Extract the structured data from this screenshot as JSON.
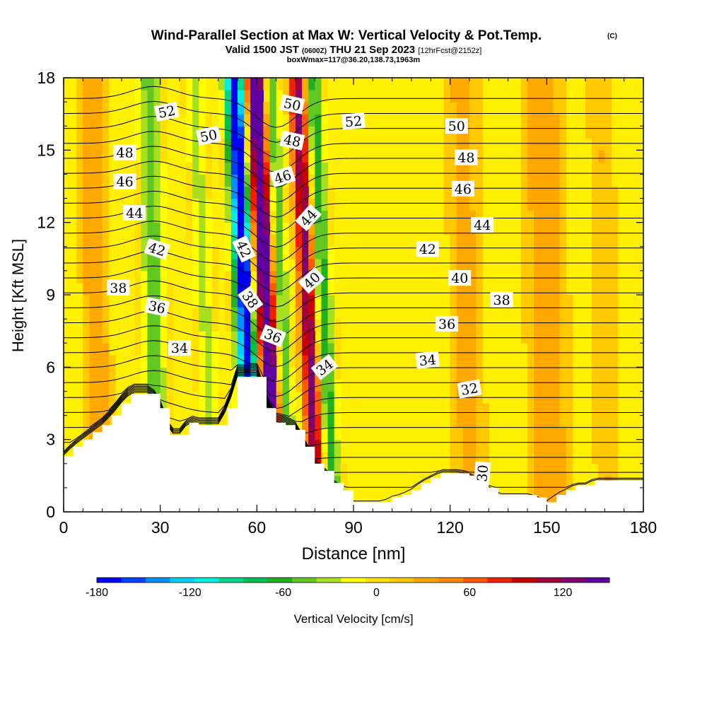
{
  "chart_data": {
    "type": "heatmap",
    "title": "Wind-Parallel Section at Max W: Vertical Velocity & Pot.Temp.",
    "title_mark": "(C)",
    "subtitle_parts": [
      "Valid 1500 JST",
      "(0600Z)",
      "THU 21 Sep 2023",
      "[12hrFcst@2152z]"
    ],
    "subtitle2": "boxWmax=117@36.20,138.73,1963m",
    "xlabel": "Distance [nm]",
    "ylabel": "Height [Kft MSL]",
    "xlim": [
      0,
      180
    ],
    "ylim": [
      0,
      18
    ],
    "xticks": [
      "0",
      "30",
      "60",
      "90",
      "120",
      "150",
      "180"
    ],
    "yticks": [
      "0",
      "3",
      "6",
      "9",
      "12",
      "15",
      "18"
    ],
    "colorbar": {
      "label": "Vertical Velocity [cm/s]",
      "range": [
        -180,
        150
      ],
      "step": 15,
      "tick_labels": [
        "-180",
        "-120",
        "-60",
        "0",
        "60",
        "120"
      ],
      "colors": [
        "#0000f5",
        "#0040ff",
        "#0090ff",
        "#00d0ff",
        "#00f0e0",
        "#00d890",
        "#00c050",
        "#20b020",
        "#60c820",
        "#a8e020",
        "#ffff00",
        "#ffe000",
        "#ffc800",
        "#ffa800",
        "#ff8800",
        "#ff5a00",
        "#f02000",
        "#c80000",
        "#a00040",
        "#800070",
        "#6000a0"
      ]
    },
    "w_features": [
      {
        "x": 28,
        "w": -55,
        "width": 3.5
      },
      {
        "x": 44,
        "w": -35,
        "width": 3
      },
      {
        "x": 55,
        "w": -90,
        "width": 2.5
      },
      {
        "x": 57,
        "w": -150,
        "width": 2
      },
      {
        "x": 63,
        "w": 160,
        "width": 2.5
      },
      {
        "x": 68,
        "w": -60,
        "width": 2
      },
      {
        "x": 76,
        "w": 110,
        "width": 2.5
      },
      {
        "x": 81,
        "w": -70,
        "width": 2.5
      },
      {
        "x": 10,
        "w": 25,
        "width": 4
      },
      {
        "x": 125,
        "w": 20,
        "width": 5
      },
      {
        "x": 150,
        "w": 25,
        "width": 6
      },
      {
        "x": 168,
        "w": 15,
        "width": 4
      }
    ],
    "terrain": {
      "x": [
        0,
        3,
        6,
        9,
        12,
        15,
        18,
        21,
        24,
        27,
        30,
        33,
        36,
        39,
        42,
        45,
        48,
        51,
        54,
        57,
        60,
        63,
        66,
        69,
        72,
        75,
        78,
        81,
        84,
        87,
        90,
        93,
        96,
        99,
        102,
        105,
        108,
        111,
        114,
        117,
        120,
        123,
        126,
        129,
        132,
        135,
        138,
        141,
        144,
        147,
        150,
        153,
        156,
        159,
        162,
        165,
        168,
        171,
        174,
        177,
        180
      ],
      "height_kft": [
        2.3,
        2.7,
        3.0,
        3.3,
        3.6,
        4.0,
        4.5,
        4.9,
        4.9,
        4.9,
        4.3,
        3.2,
        3.2,
        3.7,
        3.6,
        3.6,
        3.6,
        4.3,
        5.6,
        5.6,
        5.6,
        4.3,
        3.7,
        3.6,
        3.4,
        2.7,
        2.0,
        1.7,
        1.2,
        0.9,
        0.4,
        0.4,
        0.4,
        0.4,
        0.6,
        0.7,
        0.9,
        1.2,
        1.4,
        1.6,
        1.6,
        1.6,
        1.5,
        1.3,
        1.0,
        0.7,
        0.7,
        0.7,
        0.7,
        0.6,
        0.4,
        0.7,
        0.9,
        1.1,
        1.1,
        1.3,
        1.3,
        1.3,
        1.3,
        1.3,
        1.3
      ]
    },
    "contour_labels": [
      {
        "text": "52",
        "x": 32,
        "y": 16.6,
        "angle": -12
      },
      {
        "text": "50",
        "x": 45,
        "y": 15.6,
        "angle": -12
      },
      {
        "text": "48",
        "x": 19,
        "y": 14.9,
        "angle": 0
      },
      {
        "text": "46",
        "x": 19,
        "y": 13.7,
        "angle": 0
      },
      {
        "text": "44",
        "x": 22,
        "y": 12.4,
        "angle": 0
      },
      {
        "text": "42",
        "x": 29,
        "y": 10.9,
        "angle": 18
      },
      {
        "text": "38",
        "x": 17,
        "y": 9.3,
        "angle": 0
      },
      {
        "text": "36",
        "x": 29,
        "y": 8.5,
        "angle": 12
      },
      {
        "text": "34",
        "x": 36,
        "y": 6.8,
        "angle": 0
      },
      {
        "text": "42",
        "x": 56,
        "y": 10.9,
        "angle": 65
      },
      {
        "text": "38",
        "x": 58,
        "y": 8.8,
        "angle": 55
      },
      {
        "text": "36",
        "x": 65,
        "y": 7.3,
        "angle": 22
      },
      {
        "text": "50",
        "x": 71,
        "y": 16.9,
        "angle": 12
      },
      {
        "text": "48",
        "x": 71,
        "y": 15.4,
        "angle": 12
      },
      {
        "text": "46",
        "x": 68,
        "y": 13.9,
        "angle": -18
      },
      {
        "text": "44",
        "x": 76,
        "y": 12.2,
        "angle": -48
      },
      {
        "text": "40",
        "x": 77,
        "y": 9.6,
        "angle": -42
      },
      {
        "text": "34",
        "x": 81,
        "y": 6.0,
        "angle": -38
      },
      {
        "text": "52",
        "x": 90,
        "y": 16.2,
        "angle": -5
      },
      {
        "text": "50",
        "x": 122,
        "y": 16.0,
        "angle": 0
      },
      {
        "text": "48",
        "x": 125,
        "y": 14.7,
        "angle": 0
      },
      {
        "text": "46",
        "x": 124,
        "y": 13.4,
        "angle": 0
      },
      {
        "text": "44",
        "x": 130,
        "y": 11.9,
        "angle": 0
      },
      {
        "text": "42",
        "x": 113,
        "y": 10.9,
        "angle": 0
      },
      {
        "text": "40",
        "x": 123,
        "y": 9.7,
        "angle": 0
      },
      {
        "text": "38",
        "x": 136,
        "y": 8.8,
        "angle": 0
      },
      {
        "text": "36",
        "x": 119,
        "y": 7.8,
        "angle": 0
      },
      {
        "text": "34",
        "x": 113,
        "y": 6.3,
        "angle": -5
      },
      {
        "text": "32",
        "x": 126,
        "y": 5.1,
        "angle": -10
      },
      {
        "text": "30",
        "x": 130,
        "y": 1.6,
        "angle": -85
      }
    ]
  }
}
